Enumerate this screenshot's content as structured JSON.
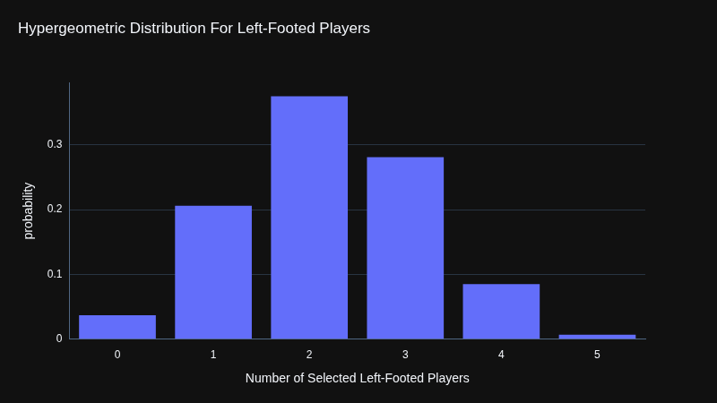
{
  "chart_data": {
    "type": "bar",
    "title": "Hypergeometric Distribution For Left-Footed Players",
    "x_label": "Number of Selected Left-Footed Players",
    "y_label": "probability",
    "categories": [
      0,
      1,
      2,
      3,
      4,
      5
    ],
    "values": [
      0.037,
      0.206,
      0.375,
      0.281,
      0.085,
      0.007
    ],
    "color": "#636efa",
    "ylim": [
      0,
      0.396
    ],
    "yticks": [
      0,
      0.1,
      0.2,
      0.3
    ],
    "grid": true
  }
}
